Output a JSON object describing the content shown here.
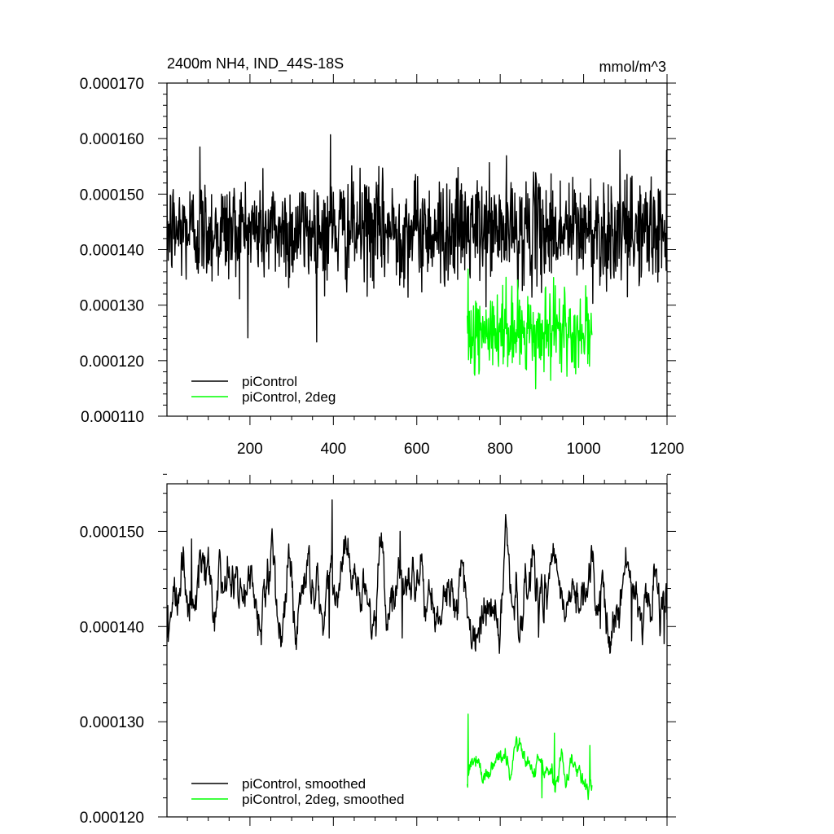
{
  "figure": {
    "title_left": "2400m NH4, IND_44S-18S",
    "title_right": "mmol/m^3"
  },
  "chart_data": [
    {
      "type": "line",
      "title": "2400m NH4, IND_44S-18S",
      "units": "mmol/m^3",
      "xlim": [
        1,
        1200
      ],
      "ylim": [
        0.00011,
        0.00017
      ],
      "x_ticks": [
        200,
        400,
        600,
        800,
        1000,
        1200
      ],
      "y_ticks": [
        0.00011,
        0.00012,
        0.00013,
        0.00014,
        0.00015,
        0.00016,
        0.00017
      ],
      "y_tick_labels": [
        "0.000110",
        "0.000120",
        "0.000130",
        "0.000140",
        "0.000150",
        "0.000160",
        "0.000170"
      ],
      "legend_position": "bottom-left",
      "grid": false,
      "series": [
        {
          "name": "piControl",
          "color": "#000000",
          "x_start": 1,
          "x_end": 1200,
          "mean": 0.0001435,
          "std": 4.8e-06,
          "noise": "white",
          "points": [
            {
              "x": 20,
              "y": 0.000139
            },
            {
              "x": 80,
              "y": 0.0001585
            },
            {
              "x": 295,
              "y": 0.000135
            },
            {
              "x": 385,
              "y": 0.0001345
            },
            {
              "x": 393,
              "y": 0.0001607
            },
            {
              "x": 565,
              "y": 0.000136
            },
            {
              "x": 657,
              "y": 0.000134
            },
            {
              "x": 758,
              "y": 0.000137
            },
            {
              "x": 1055,
              "y": 0.0001325
            },
            {
              "x": 1105,
              "y": 0.0001315
            },
            {
              "x": 1180,
              "y": 0.000136
            }
          ]
        },
        {
          "name": "piControl, 2deg",
          "color": "#00ff00",
          "x_start": 721,
          "x_end": 1020,
          "mean": 0.0001248,
          "std": 3.5e-06,
          "noise": "white",
          "points": [
            {
              "x": 723,
              "y": 0.0001365
            },
            {
              "x": 730,
              "y": 0.000129
            },
            {
              "x": 842,
              "y": 0.0001345
            },
            {
              "x": 905,
              "y": 0.000118
            },
            {
              "x": 932,
              "y": 0.0001335
            },
            {
              "x": 1005,
              "y": 0.0001335
            }
          ]
        }
      ]
    },
    {
      "type": "line",
      "title": "",
      "xlim": [
        1,
        1200
      ],
      "ylim": [
        0.00012,
        0.000155
      ],
      "x_ticks": [
        200,
        400,
        600,
        800,
        1000,
        1200
      ],
      "y_ticks": [
        0.00012,
        0.00013,
        0.00014,
        0.00015
      ],
      "y_tick_labels": [
        "0.000120",
        "0.000130",
        "0.000140",
        "0.000150"
      ],
      "legend_position": "bottom-left",
      "grid": false,
      "series": [
        {
          "name": "piControl, smoothed",
          "color": "#000000",
          "x_start": 1,
          "x_end": 1200,
          "mean": 0.0001435,
          "std": 2.5e-06,
          "noise": "smooth",
          "points": [
            {
              "x": 3,
              "y": 0.0001422
            },
            {
              "x": 60,
              "y": 0.0001492
            },
            {
              "x": 390,
              "y": 0.0001388
            },
            {
              "x": 397,
              "y": 0.0001533
            },
            {
              "x": 565,
              "y": 0.0001388
            },
            {
              "x": 560,
              "y": 0.00015
            },
            {
              "x": 745,
              "y": 0.0001388
            },
            {
              "x": 1040,
              "y": 0.0001398
            },
            {
              "x": 1115,
              "y": 0.0001385
            },
            {
              "x": 1193,
              "y": 0.0001382
            }
          ]
        },
        {
          "name": "piControl, 2deg, smoothed",
          "color": "#00ff00",
          "x_start": 721,
          "x_end": 1020,
          "mean": 0.0001252,
          "std": 1.2e-06,
          "noise": "smooth",
          "points": [
            {
              "x": 723,
              "y": 0.0001308
            },
            {
              "x": 729,
              "y": 0.0001258
            },
            {
              "x": 900,
              "y": 0.000122
            },
            {
              "x": 930,
              "y": 0.0001288
            },
            {
              "x": 1015,
              "y": 0.0001275
            }
          ]
        }
      ]
    }
  ]
}
